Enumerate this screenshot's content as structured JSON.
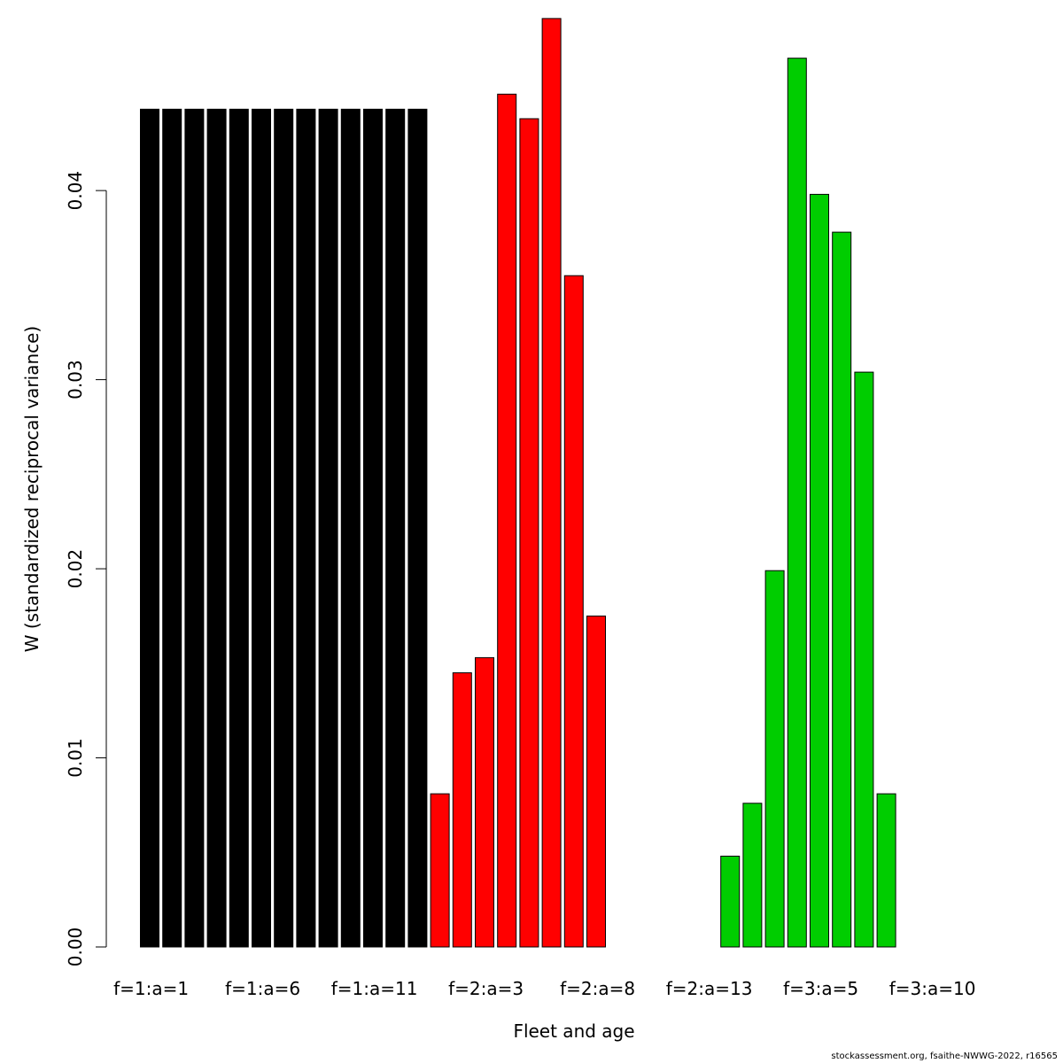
{
  "chart_data": {
    "type": "bar",
    "title": "",
    "xlabel": "Fleet and age",
    "ylabel": "W (standardized reciprocal variance)",
    "ylim": [
      0,
      0.049
    ],
    "y_ticks": [
      0.0,
      0.01,
      0.02,
      0.03,
      0.04
    ],
    "y_tick_labels": [
      "0.00",
      "0.01",
      "0.02",
      "0.03",
      "0.04"
    ],
    "x_tick_labels": [
      "f=1:a=1",
      "f=1:a=6",
      "f=1:a=11",
      "f=2:a=3",
      "f=2:a=8",
      "f=2:a=13",
      "f=3:a=5",
      "f=3:a=10"
    ],
    "x_tick_every": 5,
    "grid": false,
    "legend": "none",
    "fleet_colors": {
      "1": "#000000",
      "2": "#ff0000",
      "3": "#00cd00"
    },
    "categories": [
      "f=1:a=1",
      "f=1:a=2",
      "f=1:a=3",
      "f=1:a=4",
      "f=1:a=5",
      "f=1:a=6",
      "f=1:a=7",
      "f=1:a=8",
      "f=1:a=9",
      "f=1:a=10",
      "f=1:a=11",
      "f=1:a=12",
      "f=1:a=13",
      "f=2:a=1",
      "f=2:a=2",
      "f=2:a=3",
      "f=2:a=4",
      "f=2:a=5",
      "f=2:a=6",
      "f=2:a=7",
      "f=2:a=8",
      "f=2:a=9",
      "f=2:a=10",
      "f=2:a=11",
      "f=2:a=12",
      "f=2:a=13",
      "f=3:a=1",
      "f=3:a=2",
      "f=3:a=3",
      "f=3:a=4",
      "f=3:a=5",
      "f=3:a=6",
      "f=3:a=7",
      "f=3:a=8",
      "f=3:a=9",
      "f=3:a=10"
    ],
    "fleet": [
      1,
      1,
      1,
      1,
      1,
      1,
      1,
      1,
      1,
      1,
      1,
      1,
      1,
      2,
      2,
      2,
      2,
      2,
      2,
      2,
      2,
      2,
      2,
      2,
      2,
      2,
      3,
      3,
      3,
      3,
      3,
      3,
      3,
      3,
      3,
      3
    ],
    "values": [
      0.0443,
      0.0443,
      0.0443,
      0.0443,
      0.0443,
      0.0443,
      0.0443,
      0.0443,
      0.0443,
      0.0443,
      0.0443,
      0.0443,
      0.0443,
      0.0081,
      0.0145,
      0.0153,
      0.0451,
      0.0438,
      0.0491,
      0.0355,
      0.0175,
      0,
      0,
      0,
      0,
      0,
      0.0048,
      0.0076,
      0.0199,
      0.047,
      0.0398,
      0.0378,
      0.0304,
      0.0081,
      0,
      0
    ]
  },
  "footer": "stockassessment.org, fsaithe-NWWG-2022, r16565"
}
